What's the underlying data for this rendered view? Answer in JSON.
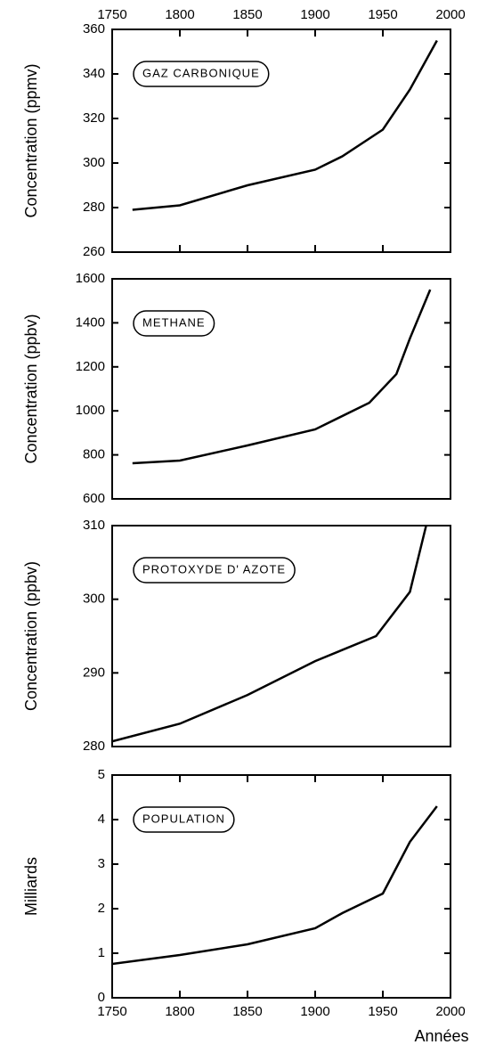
{
  "chart_data": [
    {
      "type": "line",
      "ylabel": "Concentration (ppmv)",
      "annotation": "GAZ CARBONIQUE",
      "x": [
        1765,
        1800,
        1850,
        1900,
        1920,
        1950,
        1970,
        1990
      ],
      "series": [
        {
          "color": "#000000",
          "values": [
            279,
            281,
            290,
            297,
            303,
            315,
            333,
            355
          ]
        }
      ],
      "xlim": [
        1750,
        2000
      ],
      "xticks": [
        1750,
        1800,
        1850,
        1900,
        1950,
        2000
      ],
      "xaxis_position": "top",
      "ylim": [
        260,
        360
      ],
      "yticks": [
        260,
        280,
        300,
        320,
        340,
        360
      ]
    },
    {
      "type": "line",
      "ylabel": "Concentration (ppbv)",
      "annotation": "METHANE",
      "x": [
        1765,
        1800,
        1850,
        1900,
        1940,
        1960,
        1970,
        1985
      ],
      "series": [
        {
          "color": "#000000",
          "values": [
            762,
            774,
            843,
            916,
            1037,
            1167,
            1329,
            1551
          ]
        }
      ],
      "xlim": [
        1750,
        2000
      ],
      "ylim": [
        600,
        1600
      ],
      "yticks": [
        600,
        800,
        1000,
        1200,
        1400,
        1600
      ]
    },
    {
      "type": "line",
      "ylabel": "Concentration (ppbv)",
      "annotation": "PROTOXYDE D' AZOTE",
      "x": [
        1750,
        1800,
        1850,
        1900,
        1945,
        1970,
        1982
      ],
      "series": [
        {
          "color": "#000000",
          "values": [
            280.7,
            283.1,
            287,
            291.6,
            295,
            301,
            310
          ]
        }
      ],
      "xlim": [
        1750,
        2000
      ],
      "ylim": [
        280,
        310
      ],
      "yticks": [
        280,
        290,
        300,
        310
      ]
    },
    {
      "type": "line",
      "ylabel": "Milliards",
      "annotation": "POPULATION",
      "xlabel": "Années",
      "x": [
        1750,
        1800,
        1850,
        1900,
        1920,
        1950,
        1970,
        1990
      ],
      "series": [
        {
          "color": "#000000",
          "values": [
            0.76,
            0.96,
            1.2,
            1.56,
            1.9,
            2.34,
            3.5,
            4.3
          ]
        }
      ],
      "xlim": [
        1750,
        2000
      ],
      "xticks": [
        1750,
        1800,
        1850,
        1900,
        1950,
        2000
      ],
      "xaxis_position": "bottom",
      "ylim": [
        0,
        5
      ],
      "yticks": [
        0,
        1,
        2,
        3,
        4,
        5
      ]
    }
  ]
}
